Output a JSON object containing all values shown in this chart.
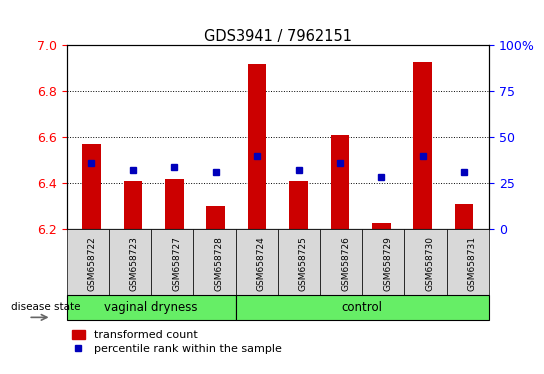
{
  "title": "GDS3941 / 7962151",
  "samples": [
    "GSM658722",
    "GSM658723",
    "GSM658727",
    "GSM658728",
    "GSM658724",
    "GSM658725",
    "GSM658726",
    "GSM658729",
    "GSM658730",
    "GSM658731"
  ],
  "n_vaginal": 4,
  "n_control": 6,
  "bar_values": [
    6.57,
    6.41,
    6.42,
    6.3,
    6.92,
    6.41,
    6.61,
    6.23,
    6.93,
    6.31
  ],
  "bar_bottom": 6.2,
  "percentile_values": [
    6.49,
    6.46,
    6.47,
    6.45,
    6.52,
    6.46,
    6.49,
    6.43,
    6.52,
    6.45
  ],
  "bar_color": "#cc0000",
  "percentile_color": "#0000bb",
  "ylim_left": [
    6.2,
    7.0
  ],
  "yticks_left": [
    6.2,
    6.4,
    6.6,
    6.8,
    7.0
  ],
  "ytick_labels_right": [
    "0",
    "25",
    "50",
    "75",
    "100%"
  ],
  "yticks_right": [
    0,
    25,
    50,
    75,
    100
  ],
  "group_label": "disease state",
  "group_names": [
    "vaginal dryness",
    "control"
  ],
  "legend_bar_label": "transformed count",
  "legend_pct_label": "percentile rank within the sample",
  "bar_width": 0.45,
  "group_fill": "#66ee66",
  "sample_cell_fill": "#d8d8d8",
  "bg_color": "#ffffff"
}
